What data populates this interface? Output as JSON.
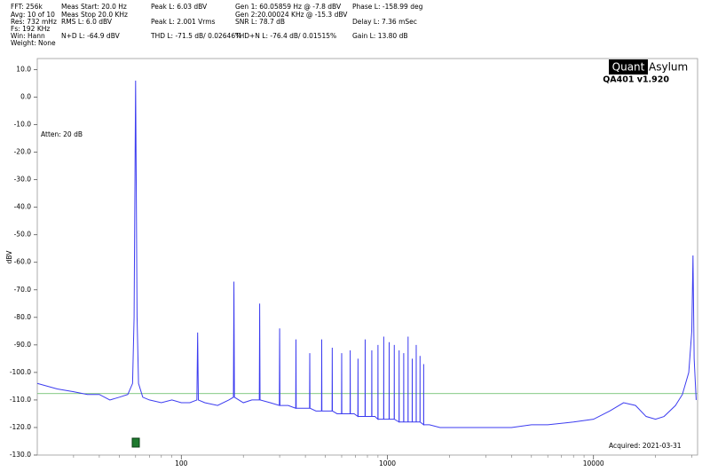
{
  "chart_data": {
    "type": "line",
    "annotations": [
      "FFT: 256k",
      "Avg: 10 of 10",
      "Res: 732 mHz",
      "Fs: 192 KHz",
      "Win: Hann",
      "Weight: None",
      "Meas Start: 20.0 Hz",
      "Meas Stop 20.0 KHz",
      "RMS L: 6.0 dBV",
      "N+D L: -64.9 dBV",
      "Peak L: 6.03 dBV",
      "Peak L: 2.001 Vrms",
      "THD L: -71.5 dB/ 0.02646%",
      "Gen 1: 60.05859 Hz @ -7.8  dBV",
      "Gen 2:20.00024 KHz @ -15.3  dBV",
      "SNR L: 78.7 dB",
      "THD+N L: -76.4 dB/ 0.01515%",
      "Phase L: -158.99 deg",
      "Delay L: 7.36 mSec",
      "Gain L: 13.80 dB",
      "Atten: 20 dB",
      "Acquired: 2021-03-31"
    ],
    "logo": [
      "Quant",
      "Asylum"
    ],
    "version": "QA401 v1.920",
    "y_label": "dBV",
    "x_scale": "log",
    "xlim": [
      20,
      32000
    ],
    "xticks": [
      100,
      1000,
      10000
    ],
    "ylim": [
      -130,
      14
    ],
    "yticks": [
      {
        "value": 10,
        "label": "10.0"
      },
      {
        "value": 0,
        "label": "0.0"
      },
      {
        "value": -10,
        "label": "-10.0"
      },
      {
        "value": -20,
        "label": "-20.0"
      },
      {
        "value": -30,
        "label": "-30.0"
      },
      {
        "value": -40,
        "label": "-40.0"
      },
      {
        "value": -50,
        "label": "-50.0"
      },
      {
        "value": -60,
        "label": "-60.0"
      },
      {
        "value": -70,
        "label": "-70.0"
      },
      {
        "value": -80,
        "label": "-80.0"
      },
      {
        "value": -90,
        "label": "-90.0"
      },
      {
        "value": -100,
        "label": "-100.0"
      },
      {
        "value": -110,
        "label": "-110.0"
      },
      {
        "value": -120,
        "label": "-120.0"
      },
      {
        "value": -130,
        "label": "-130.0"
      }
    ],
    "grid": false,
    "reference_line": {
      "value": -107.7,
      "color": "#5cb85c"
    },
    "x": [
      20,
      25,
      30,
      35,
      40,
      45,
      50,
      55,
      58,
      59,
      60,
      61,
      62,
      65,
      70,
      80,
      90,
      100,
      110,
      119,
      120,
      121,
      130,
      150,
      170,
      179,
      180,
      181,
      200,
      220,
      239,
      240,
      241,
      270,
      299,
      300,
      301,
      330,
      359,
      360,
      361,
      390,
      419,
      420,
      421,
      450,
      479,
      480,
      481,
      510,
      539,
      540,
      541,
      570,
      599,
      600,
      601,
      630,
      659,
      660,
      661,
      690,
      719,
      720,
      721,
      750,
      779,
      780,
      781,
      810,
      839,
      840,
      841,
      870,
      899,
      900,
      901,
      930,
      959,
      960,
      961,
      990,
      1019,
      1020,
      1021,
      1079,
      1080,
      1081,
      1139,
      1140,
      1141,
      1199,
      1200,
      1201,
      1259,
      1260,
      1261,
      1319,
      1320,
      1321,
      1379,
      1380,
      1381,
      1439,
      1440,
      1441,
      1499,
      1500,
      1501,
      1600,
      1800,
      2000,
      2500,
      3000,
      4000,
      5000,
      6000,
      8000,
      10000,
      12000,
      14000,
      16000,
      18000,
      20000,
      22000,
      25000,
      27000,
      29000,
      30000,
      30400,
      30800,
      31500
    ],
    "series": [
      {
        "color": "#3c3cf0",
        "values": [
          -104,
          -106,
          -107,
          -108,
          -108,
          -110,
          -109,
          -108,
          -104,
          -80,
          6,
          -80,
          -104,
          -109,
          -110,
          -111,
          -110,
          -111,
          -111,
          -110,
          -85.5,
          -110,
          -111,
          -112,
          -110,
          -109,
          -67,
          -109,
          -111,
          -110,
          -110,
          -75,
          -110,
          -111,
          -112,
          -84,
          -112,
          -112,
          -113,
          -88,
          -113,
          -113,
          -113,
          -93,
          -113,
          -114,
          -114,
          -88,
          -114,
          -114,
          -114,
          -91,
          -114,
          -115,
          -115,
          -93,
          -115,
          -115,
          -115,
          -92,
          -115,
          -115,
          -116,
          -95,
          -116,
          -116,
          -116,
          -88,
          -116,
          -116,
          -116,
          -92,
          -116,
          -116,
          -117,
          -90,
          -117,
          -117,
          -117,
          -87,
          -117,
          -117,
          -117,
          -89,
          -117,
          -117,
          -90,
          -117,
          -118,
          -92,
          -118,
          -118,
          -93,
          -118,
          -118,
          -87,
          -118,
          -118,
          -95,
          -118,
          -118,
          -90,
          -118,
          -118,
          -94,
          -118,
          -119,
          -97,
          -119,
          -119,
          -120,
          -120,
          -120,
          -120,
          -120,
          -119,
          -119,
          -118,
          -117,
          -114,
          -111,
          -112,
          -116,
          -117,
          -116,
          -112,
          -108,
          -100,
          -85,
          -57.5,
          -95,
          -110
        ]
      }
    ]
  }
}
